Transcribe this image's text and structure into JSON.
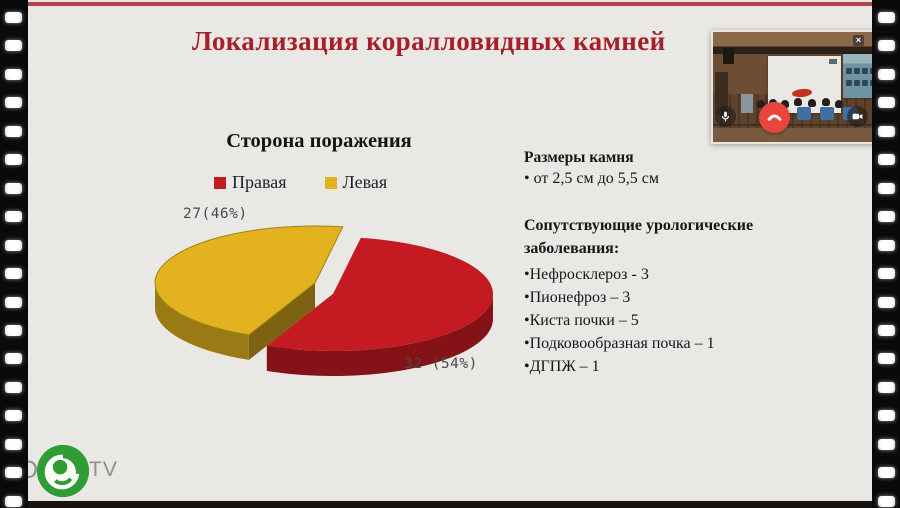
{
  "slide": {
    "title": "Локализация коралловидных камней",
    "right_panel": {
      "stone_size_heading": "Размеры камня",
      "stone_size_item": "• от 2,5 см до 5,5 см",
      "comorbid_heading": "Сопутствующие урологические заболевания:",
      "items": [
        "•Нефросклероз - 3",
        "•Пионефроз – 3",
        "•Киста почки – 5",
        "•Подковообразная почка – 1",
        "•ДГПЖ – 1"
      ]
    },
    "colors": {
      "title_red": "#a6202a",
      "top_line": "#b2444e",
      "background": "#e9e8e5"
    }
  },
  "chart_data": {
    "type": "pie",
    "style": "3d-exploded",
    "title": "Сторона поражения",
    "legend_position": "top",
    "slices": [
      {
        "label": "Правая",
        "value": 32,
        "pct": 54,
        "color": "#c41a21",
        "data_label": "32 (54%)"
      },
      {
        "label": "Левая",
        "value": 27,
        "pct": 46,
        "color": "#e2b31f",
        "data_label": "27(46%)"
      }
    ]
  },
  "video_call": {
    "close_symbol": "×"
  },
  "watermark": {
    "prefix_letter": "D",
    "suffix_text": "TV"
  }
}
